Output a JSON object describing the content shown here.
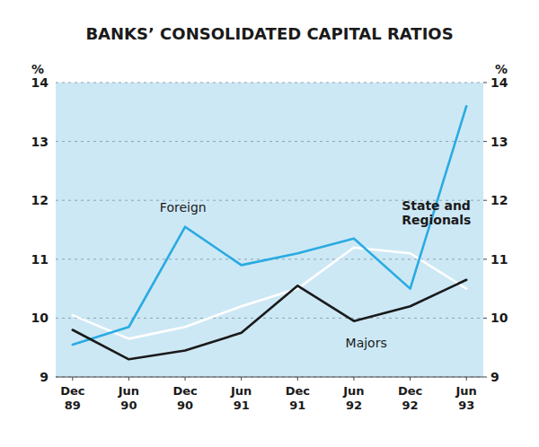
{
  "chart_data": {
    "type": "line",
    "title": "BANKS’ CONSOLIDATED CAPITAL RATIOS",
    "categories": [
      "Dec\n89",
      "Jun\n90",
      "Dec\n90",
      "Jun\n91",
      "Dec\n91",
      "Jun\n92",
      "Dec\n92",
      "Jun\n93"
    ],
    "series": [
      {
        "name": "Foreign",
        "color": "#29abe2",
        "values": [
          9.55,
          9.85,
          11.55,
          10.9,
          11.1,
          11.35,
          10.5,
          13.6
        ]
      },
      {
        "name": "State and\nRegionals",
        "color": "#ffffff",
        "values": [
          10.05,
          9.65,
          9.85,
          10.2,
          10.5,
          11.2,
          11.1,
          10.5
        ]
      },
      {
        "name": "Majors",
        "color": "#1a1a1a",
        "values": [
          9.8,
          9.3,
          9.45,
          9.75,
          10.55,
          9.95,
          10.2,
          10.65
        ]
      }
    ],
    "ylabel": "%",
    "y2label": "%",
    "ylim": [
      9,
      14
    ],
    "yticks": [
      9,
      10,
      11,
      12,
      13,
      14
    ],
    "y2lim": [
      9,
      14
    ],
    "y2ticks": [
      9,
      10,
      11,
      12,
      13,
      14
    ],
    "grid": true
  }
}
